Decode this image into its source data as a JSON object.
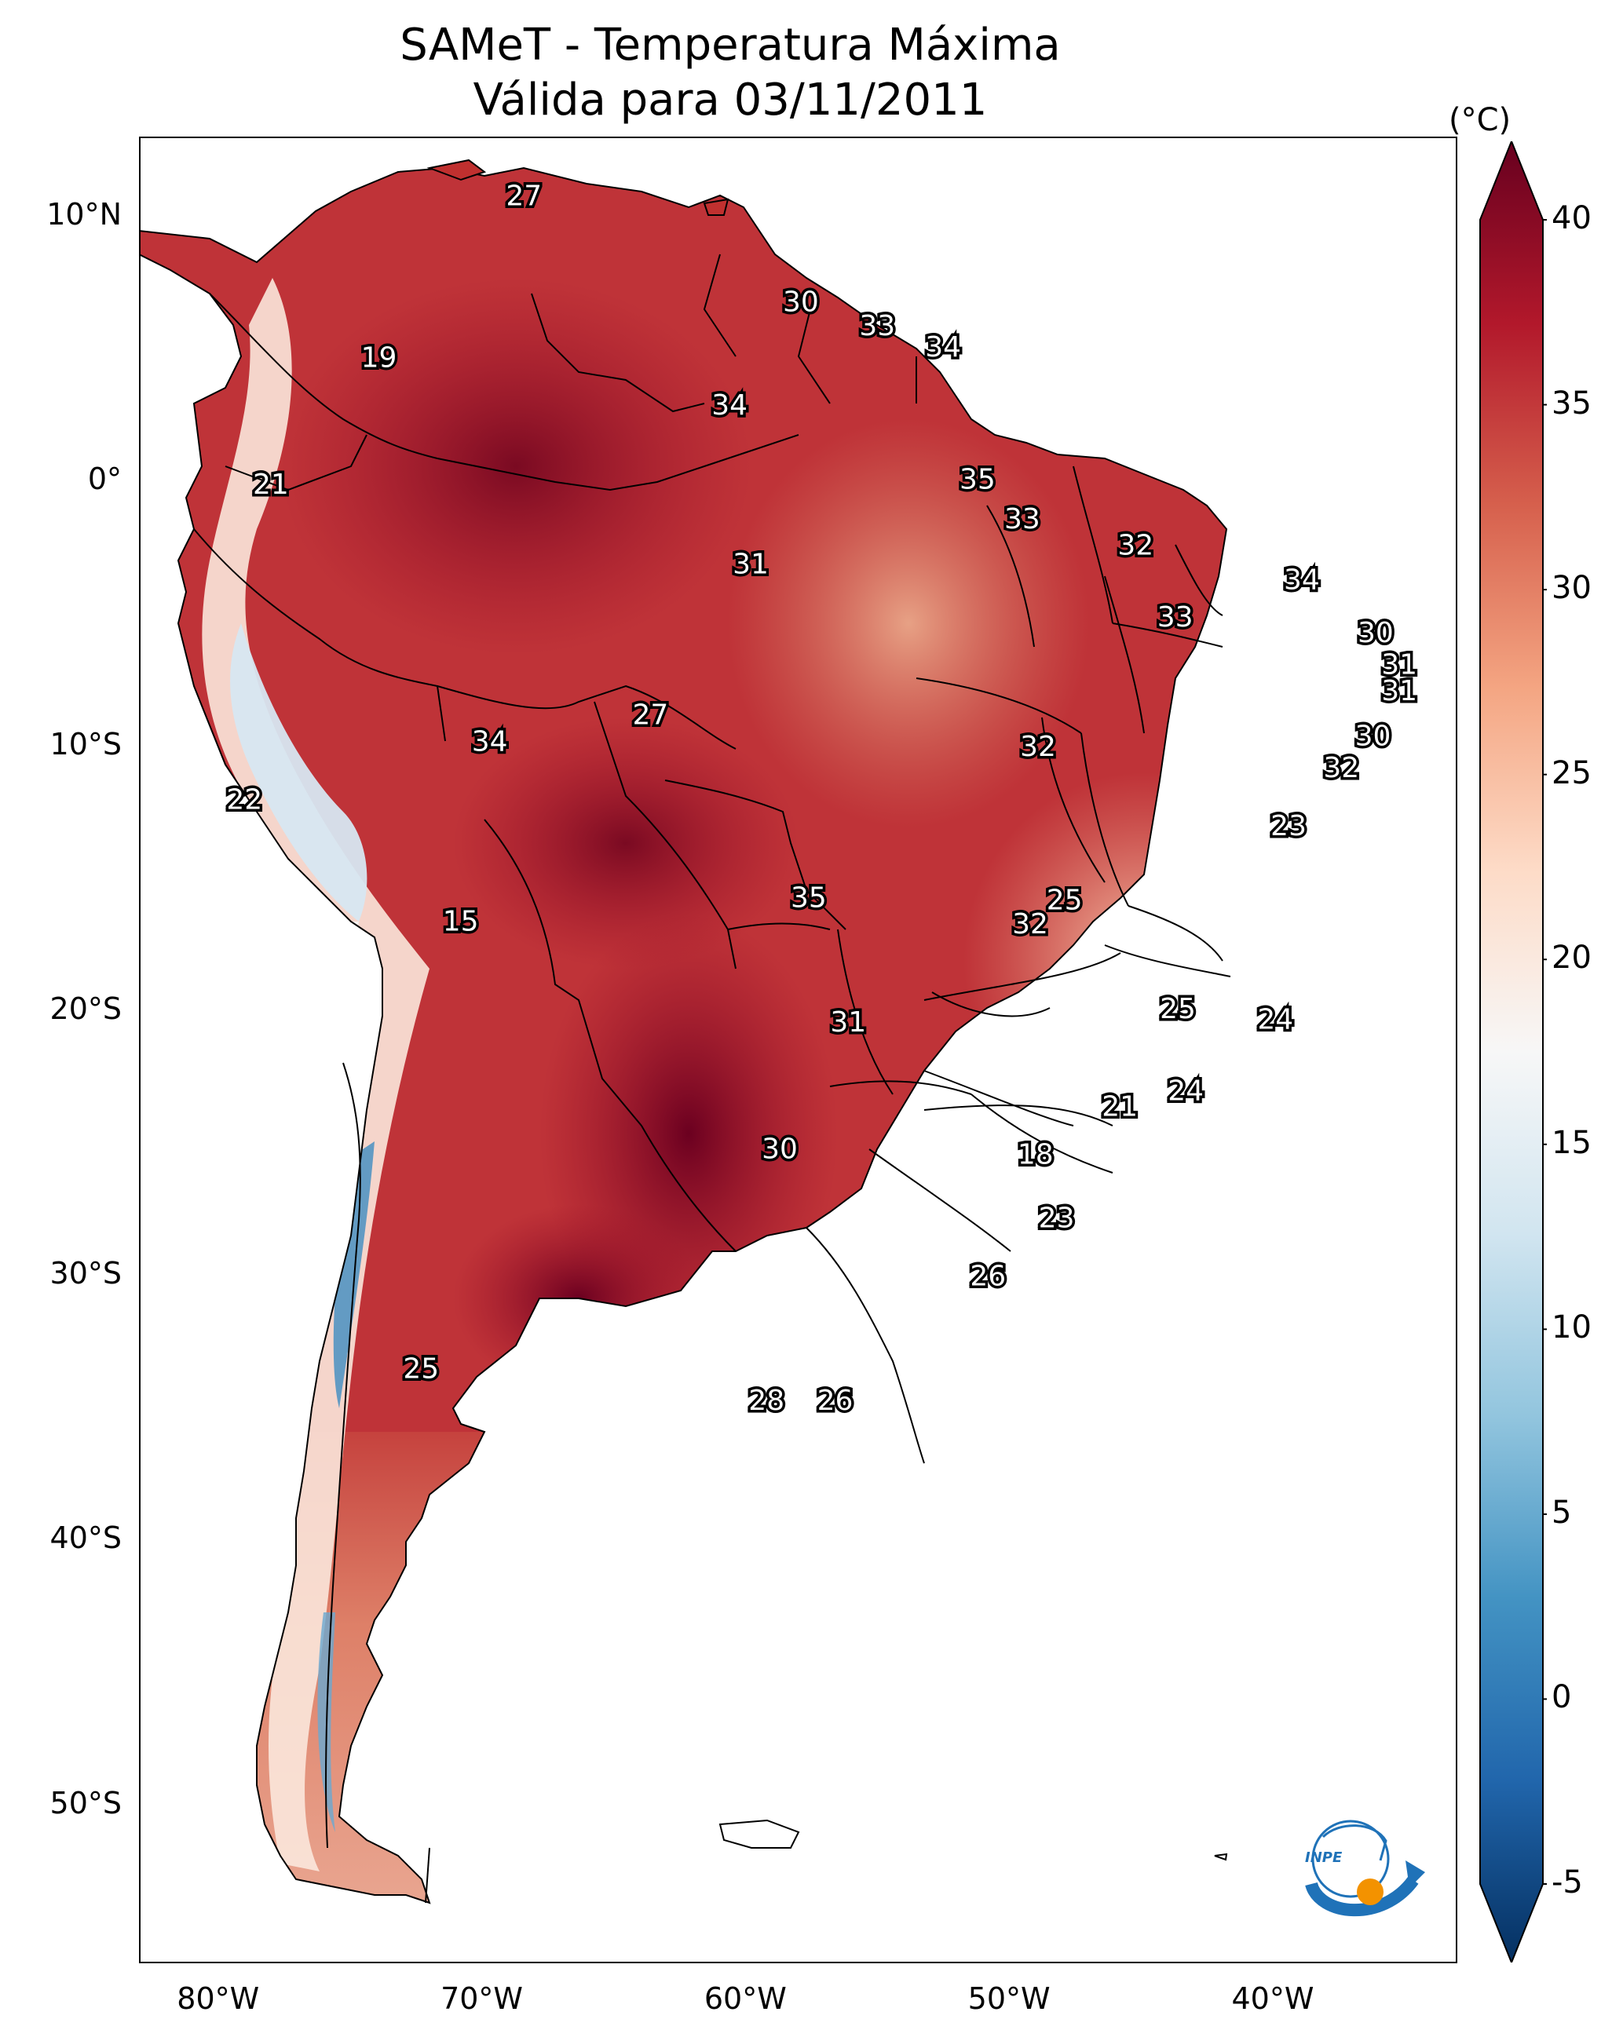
{
  "title": {
    "line1": "SAMeT - Temperatura Máxima",
    "line2": "Válida para 03/11/2011"
  },
  "map": {
    "lon_range": [
      -83,
      -33
    ],
    "lat_range": [
      -56,
      13
    ],
    "x_ticks": [
      {
        "lon": -80,
        "label": "80°W"
      },
      {
        "lon": -70,
        "label": "70°W"
      },
      {
        "lon": -60,
        "label": "60°W"
      },
      {
        "lon": -50,
        "label": "50°W"
      },
      {
        "lon": -40,
        "label": "40°W"
      }
    ],
    "y_ticks": [
      {
        "lat": 10,
        "label": "10°N"
      },
      {
        "lat": 0,
        "label": "0°"
      },
      {
        "lat": -10,
        "label": "10°S"
      },
      {
        "lat": -20,
        "label": "20°S"
      },
      {
        "lat": -30,
        "label": "30°S"
      },
      {
        "lat": -40,
        "label": "40°S"
      },
      {
        "lat": -50,
        "label": "50°S"
      }
    ],
    "value_labels": [
      {
        "lon": -68.4,
        "lat": 10.7,
        "text": "27"
      },
      {
        "lon": -57.9,
        "lat": 6.7,
        "text": "30"
      },
      {
        "lon": -55.0,
        "lat": 5.8,
        "text": "33"
      },
      {
        "lon": -52.5,
        "lat": 5.0,
        "text": "34"
      },
      {
        "lon": -73.9,
        "lat": 4.6,
        "text": "19"
      },
      {
        "lon": -60.6,
        "lat": 2.8,
        "text": "34"
      },
      {
        "lon": -51.2,
        "lat": 0.0,
        "text": "35"
      },
      {
        "lon": -78.0,
        "lat": -0.2,
        "text": "21"
      },
      {
        "lon": -49.5,
        "lat": -1.5,
        "text": "33"
      },
      {
        "lon": -45.2,
        "lat": -2.5,
        "text": "32"
      },
      {
        "lon": -59.8,
        "lat": -3.2,
        "text": "31"
      },
      {
        "lon": -38.9,
        "lat": -3.8,
        "text": "34"
      },
      {
        "lon": -43.7,
        "lat": -5.2,
        "text": "33"
      },
      {
        "lon": -36.1,
        "lat": -5.8,
        "text": "30"
      },
      {
        "lon": -35.2,
        "lat": -7.0,
        "text": "31"
      },
      {
        "lon": -35.2,
        "lat": -8.0,
        "text": "31"
      },
      {
        "lon": -36.2,
        "lat": -9.7,
        "text": "30"
      },
      {
        "lon": -63.6,
        "lat": -8.9,
        "text": "27"
      },
      {
        "lon": -69.7,
        "lat": -9.9,
        "text": "34"
      },
      {
        "lon": -48.9,
        "lat": -10.1,
        "text": "32"
      },
      {
        "lon": -37.4,
        "lat": -10.9,
        "text": "32"
      },
      {
        "lon": -79.0,
        "lat": -12.1,
        "text": "22"
      },
      {
        "lon": -39.4,
        "lat": -13.1,
        "text": "23"
      },
      {
        "lon": -57.6,
        "lat": -15.8,
        "text": "35"
      },
      {
        "lon": -47.9,
        "lat": -15.9,
        "text": "25"
      },
      {
        "lon": -49.2,
        "lat": -16.8,
        "text": "32"
      },
      {
        "lon": -70.8,
        "lat": -16.7,
        "text": "15"
      },
      {
        "lon": -43.6,
        "lat": -20.0,
        "text": "25"
      },
      {
        "lon": -39.9,
        "lat": -20.4,
        "text": "24"
      },
      {
        "lon": -56.1,
        "lat": -20.5,
        "text": "31"
      },
      {
        "lon": -43.3,
        "lat": -23.1,
        "text": "24"
      },
      {
        "lon": -45.8,
        "lat": -23.7,
        "text": "21"
      },
      {
        "lon": -58.7,
        "lat": -25.3,
        "text": "30"
      },
      {
        "lon": -49.0,
        "lat": -25.5,
        "text": "18"
      },
      {
        "lon": -48.2,
        "lat": -27.9,
        "text": "23"
      },
      {
        "lon": -50.8,
        "lat": -30.1,
        "text": "26"
      },
      {
        "lon": -72.3,
        "lat": -33.6,
        "text": "25"
      },
      {
        "lon": -59.2,
        "lat": -34.8,
        "text": "28"
      },
      {
        "lon": -56.6,
        "lat": -34.8,
        "text": "26"
      }
    ]
  },
  "colorbar": {
    "unit": "(°C)",
    "min": -5,
    "max": 40,
    "ticks": [
      {
        "value": 40,
        "label": "40"
      },
      {
        "value": 35,
        "label": "35"
      },
      {
        "value": 30,
        "label": "30"
      },
      {
        "value": 25,
        "label": "25"
      },
      {
        "value": 20,
        "label": "20"
      },
      {
        "value": 15,
        "label": "15"
      },
      {
        "value": 10,
        "label": "10"
      },
      {
        "value": 5,
        "label": "5"
      },
      {
        "value": 0,
        "label": "0"
      },
      {
        "value": -5,
        "label": "-5"
      }
    ],
    "colors": [
      "#053061",
      "#2166ac",
      "#4393c3",
      "#92c5de",
      "#d1e5f0",
      "#f7f7f7",
      "#fddbc7",
      "#f4a582",
      "#d6604d",
      "#b2182b",
      "#67001f"
    ]
  },
  "logo": {
    "text": "INPE"
  }
}
